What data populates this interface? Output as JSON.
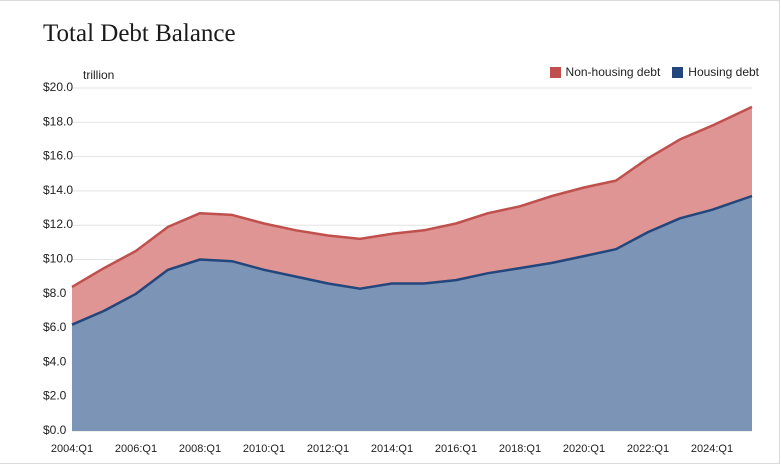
{
  "chart_data": {
    "type": "area",
    "title": "Total Debt Balance",
    "unit_label": "trillion",
    "y_ticks": [
      "$0.0",
      "$2.0",
      "$4.0",
      "$6.0",
      "$8.0",
      "$10.0",
      "$12.0",
      "$14.0",
      "$16.0",
      "$18.0",
      "$20.0"
    ],
    "x_ticks": [
      "2004:Q1",
      "2006:Q1",
      "2008:Q1",
      "2010:Q1",
      "2012:Q1",
      "2014:Q1",
      "2016:Q1",
      "2018:Q1",
      "2020:Q1",
      "2022:Q1",
      "2024:Q1"
    ],
    "ylim": [
      0,
      20
    ],
    "xlim": [
      "2004:Q1",
      "2025:Q2"
    ],
    "stacked": true,
    "grid": true,
    "legend_position": "top-right",
    "colors": {
      "non_housing_line": "#c0504d",
      "non_housing_fill": "#de9593",
      "housing_line": "#23467c",
      "housing_fill": "#7c94b5",
      "grid": "#e3e3e3"
    },
    "x": [
      "2004:Q1",
      "2005:Q1",
      "2006:Q1",
      "2007:Q1",
      "2008:Q1",
      "2009:Q1",
      "2010:Q1",
      "2011:Q1",
      "2012:Q1",
      "2013:Q1",
      "2014:Q1",
      "2015:Q1",
      "2016:Q1",
      "2017:Q1",
      "2018:Q1",
      "2019:Q1",
      "2020:Q1",
      "2021:Q1",
      "2022:Q1",
      "2023:Q1",
      "2024:Q1",
      "2025:Q2"
    ],
    "series": [
      {
        "name": "Housing debt",
        "values": [
          6.2,
          7.0,
          8.0,
          9.4,
          10.0,
          9.9,
          9.4,
          9.0,
          8.6,
          8.3,
          8.6,
          8.6,
          8.8,
          9.2,
          9.5,
          9.8,
          10.2,
          10.6,
          11.6,
          12.4,
          12.9,
          13.7
        ]
      },
      {
        "name": "Non-housing debt",
        "values": [
          2.2,
          2.5,
          2.5,
          2.5,
          2.7,
          2.7,
          2.7,
          2.7,
          2.8,
          2.9,
          2.9,
          3.1,
          3.3,
          3.5,
          3.6,
          3.9,
          4.0,
          4.0,
          4.3,
          4.6,
          4.9,
          5.2
        ]
      }
    ]
  },
  "legend": {
    "non_housing_label": "Non-housing debt",
    "housing_label": "Housing debt"
  }
}
